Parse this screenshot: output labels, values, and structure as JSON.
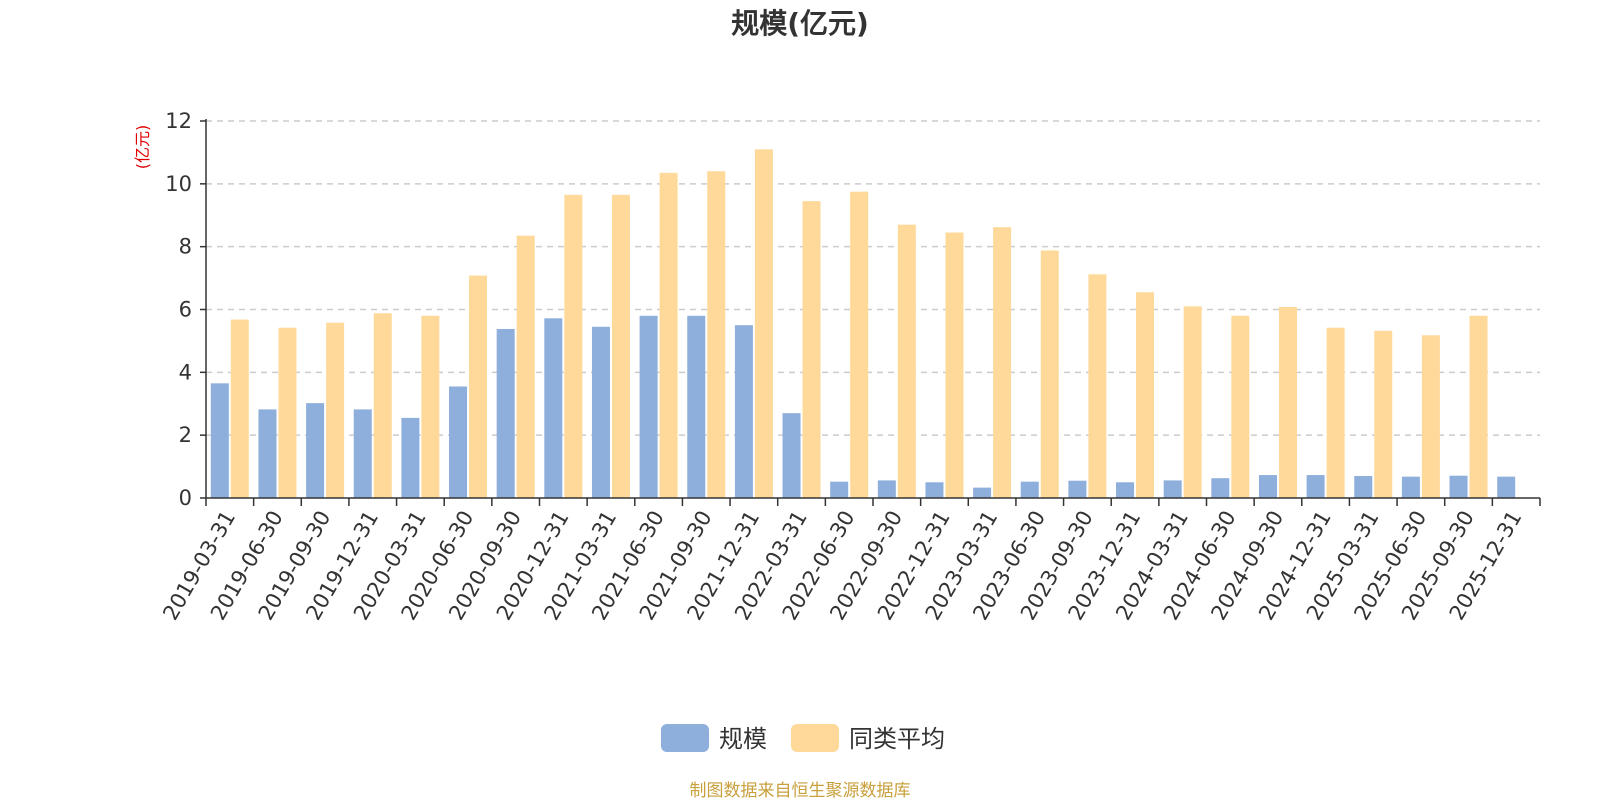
{
  "chart_data": {
    "type": "bar",
    "title": "规模(亿元)",
    "ylabel": "(亿元)",
    "ylim": [
      0,
      12
    ],
    "yticks": [
      "0",
      "2",
      "4",
      "6",
      "8",
      "10",
      "12"
    ],
    "grid": true,
    "legend_position": "bottom",
    "categories": [
      "2019-03-31",
      "2019-06-30",
      "2019-09-30",
      "2019-12-31",
      "2020-03-31",
      "2020-06-30",
      "2020-09-30",
      "2020-12-31",
      "2021-03-31",
      "2021-06-30",
      "2021-09-30",
      "2021-12-31",
      "2022-03-31",
      "2022-06-30",
      "2022-09-30",
      "2022-12-31",
      "2023-03-31",
      "2023-06-30",
      "2023-09-30",
      "2023-12-31",
      "2024-03-31",
      "2024-06-30",
      "2024-09-30",
      "2024-12-31",
      "2025-03-31",
      "2025-06-30",
      "2025-09-30",
      "2025-12-31"
    ],
    "series": [
      {
        "name": "规模",
        "color": "#8eaedb",
        "values": [
          3.65,
          2.82,
          3.02,
          2.82,
          2.55,
          3.55,
          5.38,
          5.72,
          5.45,
          5.8,
          5.8,
          5.5,
          2.7,
          0.52,
          0.56,
          0.5,
          0.33,
          0.52,
          0.55,
          0.5,
          0.56,
          0.63,
          0.73,
          0.73,
          0.7,
          0.68,
          0.71,
          0.68
        ]
      },
      {
        "name": "同类平均",
        "color": "#ffd99a",
        "values": [
          5.68,
          5.42,
          5.58,
          5.88,
          5.8,
          7.08,
          8.35,
          9.65,
          9.65,
          10.35,
          10.4,
          11.1,
          9.45,
          9.75,
          8.7,
          8.45,
          8.62,
          7.88,
          7.12,
          6.55,
          6.1,
          5.8,
          6.08,
          5.42,
          5.32,
          5.18,
          5.8,
          null
        ]
      }
    ],
    "source": "制图数据来自恒生聚源数据库"
  }
}
